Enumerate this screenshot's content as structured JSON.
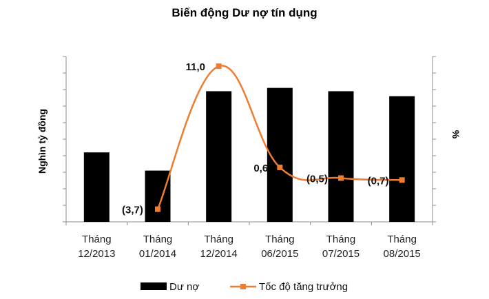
{
  "chart_data": {
    "type": "bar",
    "title": "Biến động Dư nợ tín dụng",
    "ylabel_left": "Nghìn tỷ đồng",
    "ylabel_right": "%",
    "categories": [
      [
        "Tháng",
        "12/2013"
      ],
      [
        "Tháng",
        "01/2014"
      ],
      [
        "Tháng",
        "12/2014"
      ],
      [
        "Tháng",
        "06/2015"
      ],
      [
        "Tháng",
        "07/2015"
      ],
      [
        "Tháng",
        "08/2015"
      ]
    ],
    "left_axis": {
      "min": 0,
      "max": 10,
      "ticks": 10
    },
    "right_axis": {
      "min": -5,
      "max": 12
    },
    "grid": false,
    "legend_position": "bottom",
    "series": [
      {
        "name": "Dư nợ",
        "type": "bar",
        "color": "#000000",
        "values": [
          4.2,
          3.1,
          7.9,
          8.1,
          7.9,
          7.6
        ]
      },
      {
        "name": "Tốc độ tăng trưởng",
        "type": "line",
        "smooth": true,
        "marker": "square",
        "color": "#ED7D31",
        "values": [
          null,
          -3.7,
          11.0,
          0.6,
          -0.5,
          -0.7
        ],
        "labels": [
          "",
          "(3,7)",
          "11,0",
          "0,6",
          "(0,5)",
          "(0,7)"
        ]
      }
    ]
  }
}
